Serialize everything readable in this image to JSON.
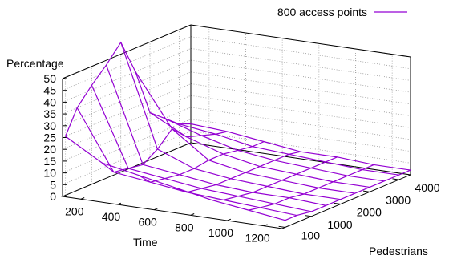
{
  "chart_data": {
    "type": "surface3d",
    "title": "",
    "zlabel": "Percentage",
    "xlabel": "Time",
    "ylabel": "Pedestrians",
    "zlim": [
      0,
      50
    ],
    "ztick_labels": [
      "0",
      "5",
      "10",
      "15",
      "20",
      "25",
      "30",
      "35",
      "40",
      "45",
      "50"
    ],
    "xlim": [
      100,
      1300
    ],
    "x_tick_labels": [
      "200",
      "400",
      "600",
      "800",
      "1000",
      "1200"
    ],
    "ylim": [
      0,
      4400
    ],
    "y_tick_labels": [
      "100",
      "1000",
      "2000",
      "3000",
      "4000"
    ],
    "grid": "dotted back walls",
    "legend_position": "top-right",
    "color": "#9400d3",
    "time_values": [
      100,
      300,
      500,
      700,
      900,
      1100,
      1300
    ],
    "pedestrian_values": [
      100,
      500,
      1000,
      1500,
      2000,
      2500,
      3000,
      3500,
      4000,
      4400
    ],
    "series": [
      {
        "name": "800 access points",
        "z": [
          [
            25,
            16,
            13,
            10,
            7,
            5,
            3
          ],
          [
            35,
            10,
            8,
            6,
            5,
            4,
            3
          ],
          [
            42,
            9,
            7,
            5,
            4,
            3,
            2
          ],
          [
            48,
            8,
            6,
            4,
            3,
            3,
            2
          ],
          [
            55,
            12,
            6,
            4,
            3,
            2,
            2
          ],
          [
            40,
            18,
            7,
            4,
            3,
            2,
            2
          ],
          [
            20,
            12,
            7,
            4,
            3,
            2,
            2
          ],
          [
            15,
            10,
            6,
            4,
            3,
            2,
            2
          ],
          [
            10,
            8,
            5,
            4,
            3,
            2,
            2
          ],
          [
            8,
            7,
            5,
            3,
            3,
            2,
            2
          ]
        ]
      }
    ]
  }
}
